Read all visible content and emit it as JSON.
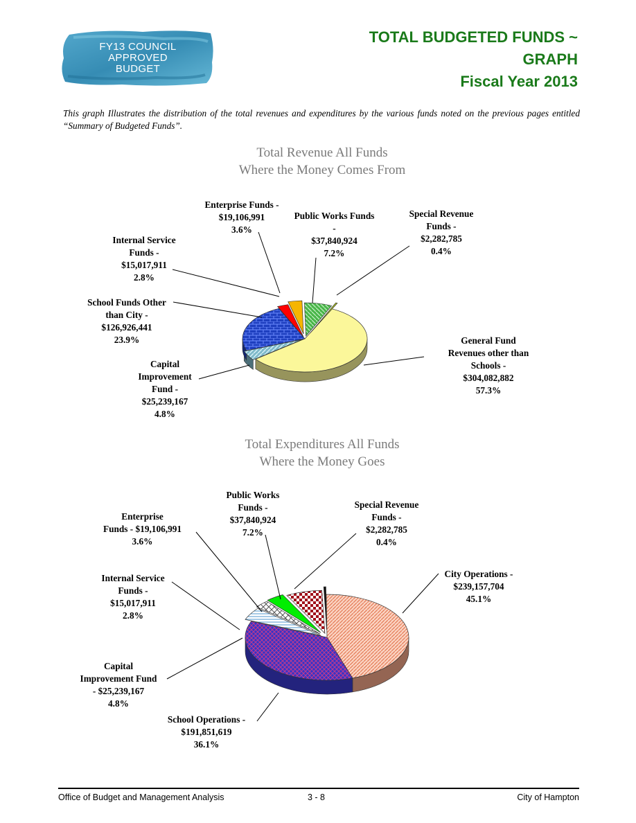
{
  "logo": {
    "lines": [
      "FY13 COUNCIL",
      "APPROVED",
      "BUDGET"
    ]
  },
  "header": {
    "title_lines": [
      "TOTAL BUDGETED FUNDS ~",
      "GRAPH",
      "Fiscal Year 2013"
    ]
  },
  "intro_text": "This graph Illustrates the distribution of the total revenues and expenditures by the various funds noted on the previous pages entitled “Summary of Budgeted Funds”.",
  "colors": {
    "title_green": "#1a7a1a",
    "chart_title_gray": "#7a7a7a"
  },
  "chart_data": [
    {
      "type": "pie",
      "title": "Total Revenue All Funds",
      "subtitle": "Where the Money Comes From",
      "slices": [
        {
          "name": "General Fund Revenues other than Schools",
          "value": 304082882,
          "percent": 57.3,
          "label": [
            "General Fund",
            "Revenues other than",
            "Schools -",
            "$304,082,882",
            "57.3%"
          ],
          "color": "#fbf79a"
        },
        {
          "name": "Capital Improvement Fund",
          "value": 25239167,
          "percent": 4.8,
          "label": [
            "Capital",
            "Improvement",
            "Fund -",
            "$25,239,167",
            "4.8%"
          ],
          "color": "#7fb9c9"
        },
        {
          "name": "School Funds Other than City",
          "value": 126926441,
          "percent": 23.9,
          "label": [
            "School Funds Other",
            "than City -",
            "$126,926,441",
            "23.9%"
          ],
          "color": "#1e3fbf"
        },
        {
          "name": "Internal Service Funds",
          "value": 15017911,
          "percent": 2.8,
          "label": [
            "Internal Service",
            "Funds -",
            "$15,017,911",
            "2.8%"
          ],
          "color": "#ff0000"
        },
        {
          "name": "Enterprise Funds",
          "value": 19106991,
          "percent": 3.6,
          "label": [
            "Enterprise Funds -",
            "$19,106,991",
            "3.6%"
          ],
          "color": "#f6b500"
        },
        {
          "name": "Public Works Funds",
          "value": 37840924,
          "percent": 7.2,
          "label": [
            "Public Works Funds",
            "-",
            "$37,840,924",
            "7.2%"
          ],
          "color": "#49b649"
        },
        {
          "name": "Special Revenue Funds",
          "value": 2282785,
          "percent": 0.4,
          "label": [
            "Special Revenue",
            "Funds -",
            "$2,282,785",
            "0.4%"
          ],
          "color": "#b9cf1f"
        }
      ]
    },
    {
      "type": "pie",
      "title": "Total Expenditures All Funds",
      "subtitle": "Where the Money Goes",
      "slices": [
        {
          "name": "City Operations",
          "value": 239157704,
          "percent": 45.1,
          "label": [
            "City Operations -",
            "$239,157,704",
            "45.1%"
          ],
          "color": "#f7a98a"
        },
        {
          "name": "School Operations",
          "value": 191851619,
          "percent": 36.1,
          "label": [
            "School Operations -",
            "$191,851,619",
            "36.1%"
          ],
          "color": "#3a3ad0"
        },
        {
          "name": "Capital Improvement Fund",
          "value": 25239167,
          "percent": 4.8,
          "label": [
            "Capital",
            "Improvement Fund",
            "- $25,239,167",
            "4.8%"
          ],
          "color": "#d8ecff"
        },
        {
          "name": "Internal Service Funds",
          "value": 15017911,
          "percent": 2.8,
          "label": [
            "Internal Service",
            "Funds -",
            "$15,017,911",
            "2.8%"
          ],
          "color": "#e8e8e8"
        },
        {
          "name": "Enterprise Funds",
          "value": 19106991,
          "percent": 3.6,
          "label": [
            "Enterprise",
            "Funds - $19,106,991",
            "3.6%"
          ],
          "color": "#00ee00"
        },
        {
          "name": "Public Works Funds",
          "value": 37840924,
          "percent": 7.2,
          "label": [
            "Public Works",
            "Funds -",
            "$37,840,924",
            "7.2%"
          ],
          "color": "#a0101a"
        },
        {
          "name": "Special Revenue Funds",
          "value": 2282785,
          "percent": 0.4,
          "label": [
            "Special Revenue",
            "Funds -",
            "$2,282,785",
            "0.4%"
          ],
          "color": "#111111"
        }
      ]
    }
  ],
  "footer": {
    "left": "Office of Budget and Management Analysis",
    "center": "3 - 8",
    "right": "City of Hampton"
  }
}
